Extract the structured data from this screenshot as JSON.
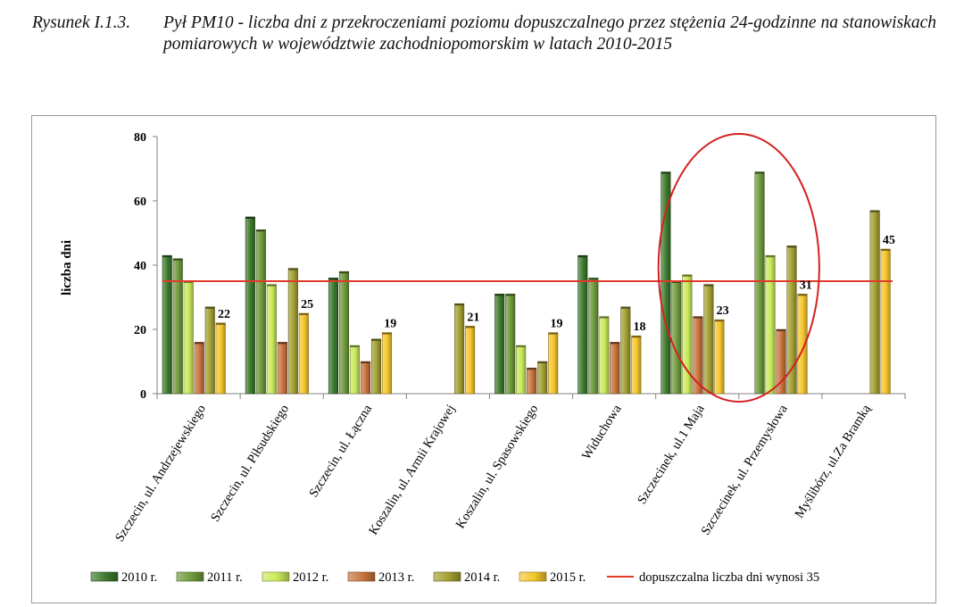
{
  "caption": {
    "label": "Rysunek I.1.3.",
    "text": "Pył PM10 - liczba dni z przekroczeniami poziomu dopuszczalnego przez stężenia 24-godzinne na stanowiskach pomiarowych w województwie zachodniopomorskim w latach 2010-2015"
  },
  "chart_data": {
    "type": "bar",
    "title": "",
    "xlabel": "",
    "ylabel": "liczba dni",
    "ylim": [
      0,
      80
    ],
    "yticks": [
      "0",
      "20",
      "40",
      "60",
      "80"
    ],
    "grid": false,
    "legend_position": "bottom",
    "categories": [
      "Szczecin, ul. Andrzejewskiego",
      "Szczecin, ul. Piłsudskiego",
      "Szczecin, ul. Łączna",
      "Koszalin, ul. Armii Krajowej",
      "Koszalin, ul. Spasowskiego",
      "Widuchowa",
      "Szczecinek, ul.1 Maja",
      "Szczecinek, ul. Przemysłowa",
      "Myślibórz, ul.Za Bramką"
    ],
    "series": [
      {
        "name": "2010 r.",
        "color": "#3d7a2e",
        "values": [
          43,
          55,
          36,
          null,
          31,
          43,
          69,
          null,
          null
        ]
      },
      {
        "name": "2011 r.",
        "color": "#6f9a3c",
        "values": [
          42,
          51,
          38,
          null,
          31,
          36,
          35,
          69,
          null
        ]
      },
      {
        "name": "2012 r.",
        "color": "#c9ea5a",
        "values": [
          35,
          34,
          15,
          null,
          15,
          24,
          37,
          43,
          null
        ]
      },
      {
        "name": "2013 r.",
        "color": "#c8743c",
        "values": [
          16,
          16,
          10,
          null,
          8,
          16,
          24,
          20,
          null
        ]
      },
      {
        "name": "2014 r.",
        "color": "#a3a033",
        "values": [
          27,
          39,
          17,
          28,
          10,
          27,
          34,
          46,
          57
        ]
      },
      {
        "name": "2015 r.",
        "color": "#f5c62c",
        "values": [
          22,
          25,
          19,
          21,
          19,
          18,
          23,
          31,
          45
        ]
      }
    ],
    "data_labels": {
      "series": "2015 r.",
      "values": [
        "22",
        "25",
        "19",
        "21",
        "19",
        "18",
        "23",
        "31",
        "45"
      ]
    },
    "reference_line": {
      "name": "dopuszczalna liczba dni wynosi 35",
      "value": 35,
      "color": "#e03a2a"
    },
    "annotation": {
      "shape": "ellipse",
      "color": "#d42020",
      "highlights": [
        "Szczecinek, ul.1 Maja",
        "Szczecinek, ul. Przemysłowa"
      ]
    }
  }
}
